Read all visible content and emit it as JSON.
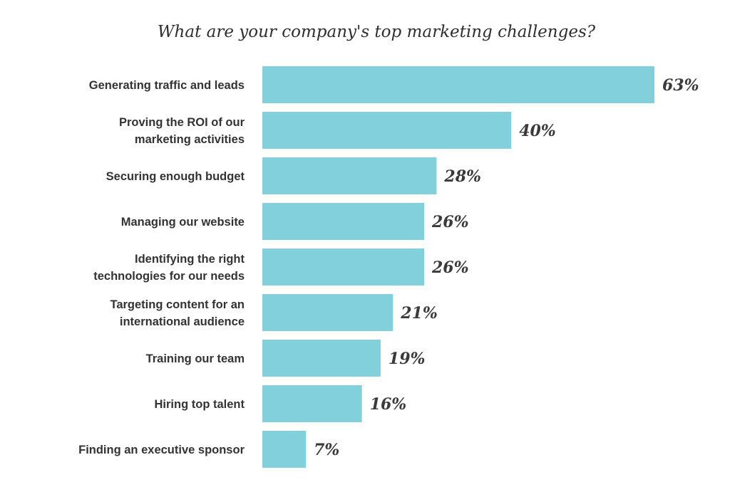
{
  "chart_data": {
    "type": "bar",
    "orientation": "horizontal",
    "title": "What are your company's top marketing challenges?",
    "xlabel": "",
    "ylabel": "",
    "categories": [
      [
        "Generating traffic and leads"
      ],
      [
        "Proving the ROI of our",
        "marketing activities"
      ],
      [
        "Securing enough budget"
      ],
      [
        "Managing our website"
      ],
      [
        "Identifying the right",
        "technologies for our needs"
      ],
      [
        "Targeting content for an",
        "international audience"
      ],
      [
        "Training our team"
      ],
      [
        "Hiring top talent"
      ],
      [
        "Finding an executive sponsor"
      ]
    ],
    "values": [
      63,
      40,
      28,
      26,
      26,
      21,
      19,
      16,
      7
    ],
    "value_labels": [
      "63%",
      "40%",
      "28%",
      "26%",
      "26%",
      "21%",
      "19%",
      "16%",
      "7%"
    ],
    "unit": "%",
    "xlim": [
      0,
      63
    ],
    "grid": false,
    "legend": "none",
    "bar_color": "#82d0dc"
  }
}
